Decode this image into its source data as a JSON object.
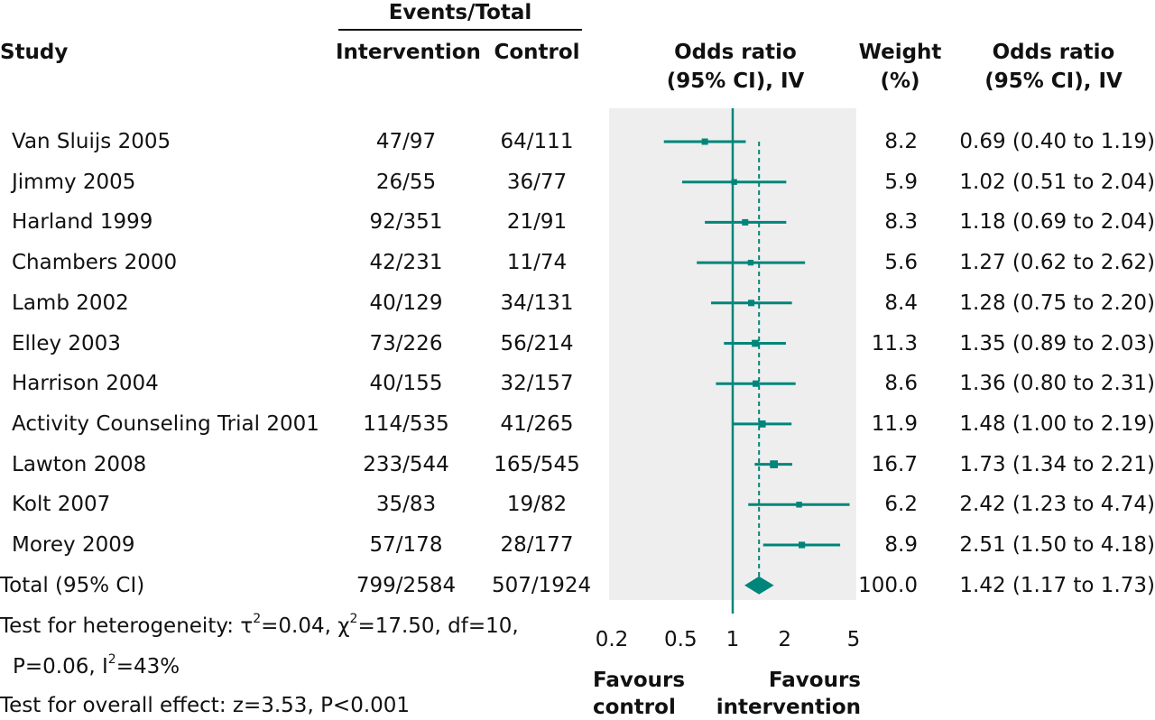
{
  "header": {
    "events_total": "Events/Total",
    "study": "Study",
    "intervention": "Intervention",
    "control": "Control",
    "or_plot_l1": "Odds ratio",
    "or_plot_l2": "(95% CI), IV",
    "weight_l1": "Weight",
    "weight_l2": "(%)",
    "or_text_l1": "Odds ratio",
    "or_text_l2": "(95% CI), IV"
  },
  "studies": [
    {
      "name": "Van Sluijs 2005",
      "intervention": "47/97",
      "control": "64/111",
      "weight": "8.2",
      "or_text": "0.69 (0.40 to 1.19)"
    },
    {
      "name": "Jimmy 2005",
      "intervention": "26/55",
      "control": "36/77",
      "weight": "5.9",
      "or_text": "1.02 (0.51 to 2.04)"
    },
    {
      "name": "Harland 1999",
      "intervention": "92/351",
      "control": "21/91",
      "weight": "8.3",
      "or_text": "1.18 (0.69 to 2.04)"
    },
    {
      "name": "Chambers 2000",
      "intervention": "42/231",
      "control": "11/74",
      "weight": "5.6",
      "or_text": "1.27 (0.62 to 2.62)"
    },
    {
      "name": "Lamb 2002",
      "intervention": "40/129",
      "control": "34/131",
      "weight": "8.4",
      "or_text": "1.28 (0.75 to 2.20)"
    },
    {
      "name": "Elley 2003",
      "intervention": "73/226",
      "control": "56/214",
      "weight": "11.3",
      "or_text": "1.35 (0.89 to 2.03)"
    },
    {
      "name": "Harrison 2004",
      "intervention": "40/155",
      "control": "32/157",
      "weight": "8.6",
      "or_text": "1.36 (0.80 to 2.31)"
    },
    {
      "name": "Activity Counseling Trial 2001",
      "intervention": "114/535",
      "control": "41/265",
      "weight": "11.9",
      "or_text": "1.48 (1.00 to 2.19)"
    },
    {
      "name": "Lawton 2008",
      "intervention": "233/544",
      "control": "165/545",
      "weight": "16.7",
      "or_text": "1.73 (1.34 to 2.21)"
    },
    {
      "name": "Kolt 2007",
      "intervention": "35/83",
      "control": "19/82",
      "weight": "6.2",
      "or_text": "2.42 (1.23 to 4.74)"
    },
    {
      "name": "Morey 2009",
      "intervention": "57/178",
      "control": "28/177",
      "weight": "8.9",
      "or_text": "2.51 (1.50 to 4.18)"
    }
  ],
  "total": {
    "name": "Total (95% CI)",
    "intervention": "799/2584",
    "control": "507/1924",
    "weight": "100.0",
    "or_text": "1.42 (1.17 to 1.73)"
  },
  "footer": {
    "het_a": "Test for heterogeneity: τ",
    "het_sup1": "2",
    "het_b": "=0.04, χ",
    "het_sup2": "2",
    "het_c": "=17.50, df=10,",
    "het2_a": "P=0.06, I",
    "het2_sup": "2",
    "het2_b": "=43%",
    "overall": "Test for overall effect: z=3.53, P<0.001",
    "favours_control_1": "Favours",
    "favours_control_2": "control",
    "favours_int_1": "Favours",
    "favours_int_2": "intervention"
  },
  "colors": {
    "accent": "#00857a",
    "panel": "#eeeeee",
    "text": "#111111"
  },
  "chart_data": {
    "type": "forest",
    "scale": "log",
    "xlim": [
      0.2,
      5
    ],
    "x_ticks": [
      0.2,
      0.5,
      1,
      2,
      5
    ],
    "x_tick_labels": [
      "0.2",
      "0.5",
      "1",
      "2",
      "5"
    ],
    "reference_line": 1,
    "pooled_line": 1.42,
    "studies": [
      {
        "name": "Van Sluijs 2005",
        "or": 0.69,
        "lo": 0.4,
        "hi": 1.19,
        "weight": 8.2
      },
      {
        "name": "Jimmy 2005",
        "or": 1.02,
        "lo": 0.51,
        "hi": 2.04,
        "weight": 5.9
      },
      {
        "name": "Harland 1999",
        "or": 1.18,
        "lo": 0.69,
        "hi": 2.04,
        "weight": 8.3
      },
      {
        "name": "Chambers 2000",
        "or": 1.27,
        "lo": 0.62,
        "hi": 2.62,
        "weight": 5.6
      },
      {
        "name": "Lamb 2002",
        "or": 1.28,
        "lo": 0.75,
        "hi": 2.2,
        "weight": 8.4
      },
      {
        "name": "Elley 2003",
        "or": 1.35,
        "lo": 0.89,
        "hi": 2.03,
        "weight": 11.3
      },
      {
        "name": "Harrison 2004",
        "or": 1.36,
        "lo": 0.8,
        "hi": 2.31,
        "weight": 8.6
      },
      {
        "name": "Activity Counseling Trial 2001",
        "or": 1.48,
        "lo": 1.0,
        "hi": 2.19,
        "weight": 11.9
      },
      {
        "name": "Lawton 2008",
        "or": 1.73,
        "lo": 1.34,
        "hi": 2.21,
        "weight": 16.7
      },
      {
        "name": "Kolt 2007",
        "or": 2.42,
        "lo": 1.23,
        "hi": 4.74,
        "weight": 6.2
      },
      {
        "name": "Morey 2009",
        "or": 2.51,
        "lo": 1.5,
        "hi": 4.18,
        "weight": 8.9
      }
    ],
    "total": {
      "or": 1.42,
      "lo": 1.17,
      "hi": 1.73,
      "weight": 100.0
    }
  }
}
